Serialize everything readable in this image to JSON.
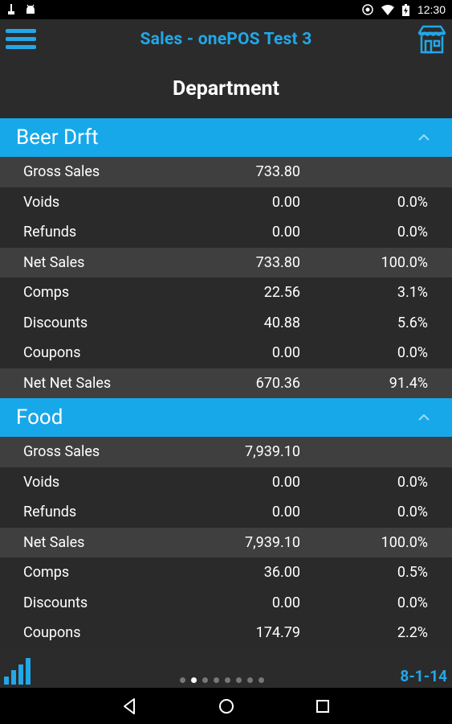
{
  "status_bar": {
    "time": "12:30"
  },
  "app_bar": {
    "title": "Sales - onePOS Test 3",
    "accent_color": "#22a7e8",
    "menu_icon": "hamburger-menu-icon",
    "right_icon": "store-icon"
  },
  "page": {
    "title": "Department"
  },
  "sections": [
    {
      "name": "Beer Drft",
      "rows": [
        {
          "label": "Gross Sales",
          "amount": "733.80",
          "percent": ""
        },
        {
          "label": "Voids",
          "amount": "0.00",
          "percent": "0.0%"
        },
        {
          "label": "Refunds",
          "amount": "0.00",
          "percent": "0.0%"
        },
        {
          "label": "Net Sales",
          "amount": "733.80",
          "percent": "100.0%"
        },
        {
          "label": "Comps",
          "amount": "22.56",
          "percent": "3.1%"
        },
        {
          "label": "Discounts",
          "amount": "40.88",
          "percent": "5.6%"
        },
        {
          "label": "Coupons",
          "amount": "0.00",
          "percent": "0.0%"
        },
        {
          "label": "Net Net Sales",
          "amount": "670.36",
          "percent": "91.4%"
        }
      ]
    },
    {
      "name": "Food",
      "rows": [
        {
          "label": "Gross Sales",
          "amount": "7,939.10",
          "percent": ""
        },
        {
          "label": "Voids",
          "amount": "0.00",
          "percent": "0.0%"
        },
        {
          "label": "Refunds",
          "amount": "0.00",
          "percent": "0.0%"
        },
        {
          "label": "Net Sales",
          "amount": "7,939.10",
          "percent": "100.0%"
        },
        {
          "label": "Comps",
          "amount": "36.00",
          "percent": "0.5%"
        },
        {
          "label": "Discounts",
          "amount": "0.00",
          "percent": "0.0%"
        },
        {
          "label": "Coupons",
          "amount": "174.79",
          "percent": "2.2%"
        }
      ]
    }
  ],
  "bottom_bar": {
    "date": "8-1-14",
    "page_count": 8,
    "active_page": 2,
    "left_icon": "bar-chart-icon"
  },
  "colors": {
    "section_header": "#17a8ea",
    "shaded_row": "#3f3f3f",
    "background": "#2a2a2a"
  }
}
